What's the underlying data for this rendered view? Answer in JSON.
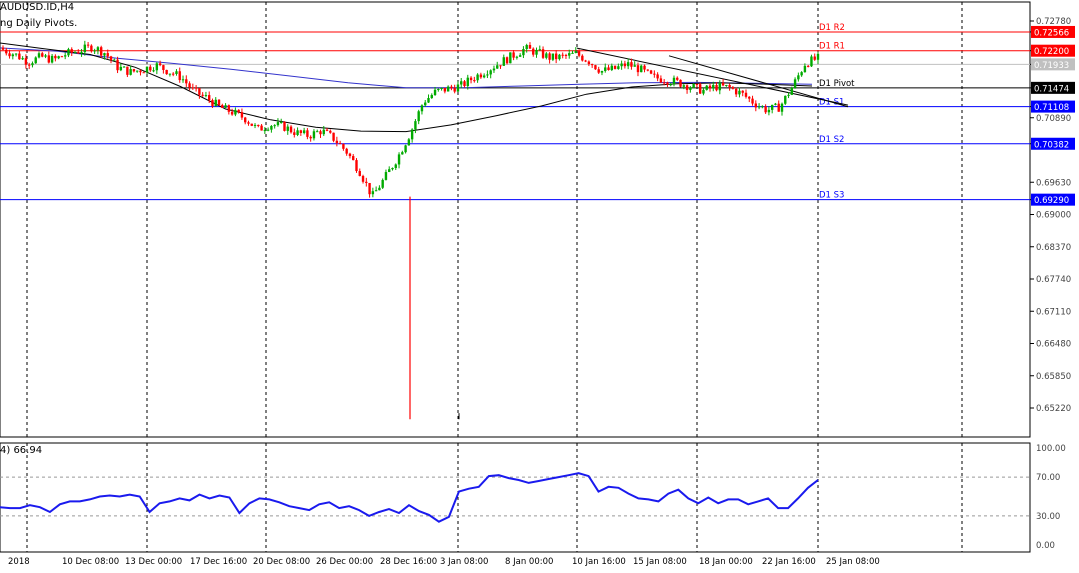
{
  "header": {
    "symbol_timeframe": "AUDUSD.ID,H4",
    "indicator_label": "ng Daily Pivots.",
    "osc_label": "4) 66.94"
  },
  "colors": {
    "resistance": "#ff0000",
    "support": "#0000ff",
    "pivot": "#000000",
    "bull": "#00aa00",
    "bear": "#ff0000",
    "ma_blue": "#3333cc",
    "osc_line": "#1a1aee"
  },
  "chart_data": [
    {
      "type": "candlestick",
      "title": "AUDUSD.ID,H4",
      "y_ticks": [
        "0.72780",
        "0.72566",
        "0.72200",
        "0.71933",
        "0.71474",
        "0.71108",
        "0.70890",
        "0.70382",
        "0.69630",
        "0.69290",
        "0.69000",
        "0.68370",
        "0.67740",
        "0.67110",
        "0.66480",
        "0.65850",
        "0.65220"
      ],
      "x_ticks": [
        "2018",
        "10 Dec 08:00",
        "13 Dec 00:00",
        "17 Dec 16:00",
        "20 Dec 08:00",
        "26 Dec 00:00",
        "28 Dec 16:00",
        "3 Jan 08:00",
        "8 Jan 00:00",
        "10 Jan 16:00",
        "15 Jan 08:00",
        "18 Jan 00:00",
        "22 Jan 16:00",
        "25 Jan 08:00"
      ],
      "ylim": [
        0.6493,
        0.731
      ],
      "grid": "vertical dashed",
      "pivot_levels": [
        {
          "name": "D1 R2",
          "value": 0.72566,
          "tag": "0.72566",
          "kind": "resistance"
        },
        {
          "name": "D1 R1",
          "value": 0.722,
          "tag": "0.72200",
          "kind": "resistance"
        },
        {
          "name": "D1 Pivot",
          "value": 0.71474,
          "tag": "0.71474",
          "kind": "pivot"
        },
        {
          "name": "D1 S1",
          "value": 0.71108,
          "tag": "0.71108",
          "kind": "support"
        },
        {
          "name": "D1 S2",
          "value": 0.70382,
          "tag": "0.70382",
          "kind": "support"
        },
        {
          "name": "D1 S3",
          "value": 0.6929,
          "tag": "0.69290",
          "kind": "support"
        }
      ],
      "current_price": 0.71933,
      "close_path": [
        0.7222,
        0.7212,
        0.7198,
        0.7208,
        0.7202,
        0.7214,
        0.722,
        0.7228,
        0.7216,
        0.7188,
        0.7178,
        0.7184,
        0.7192,
        0.718,
        0.7168,
        0.714,
        0.7128,
        0.711,
        0.71,
        0.7088,
        0.7066,
        0.7076,
        0.7072,
        0.706,
        0.7054,
        0.7064,
        0.7048,
        0.7022,
        0.6985,
        0.6935,
        0.6972,
        0.7012,
        0.706,
        0.712,
        0.714,
        0.7146,
        0.7152,
        0.7168,
        0.7182,
        0.7196,
        0.721,
        0.7224,
        0.7216,
        0.7206,
        0.7208,
        0.7214,
        0.72,
        0.718,
        0.7184,
        0.7194,
        0.7184,
        0.7168,
        0.7164,
        0.7158,
        0.715,
        0.7142,
        0.715,
        0.7148,
        0.7136,
        0.7118,
        0.7104,
        0.711,
        0.715,
        0.7196,
        0.7205
      ],
      "ma_black": [
        [
          0.724,
          0.723
        ],
        [
          0.7222,
          0.7225
        ],
        [
          0.721,
          0.7215
        ],
        [
          0.7185,
          0.719
        ],
        [
          0.714,
          0.716
        ],
        [
          0.71,
          0.7112
        ],
        [
          0.708,
          0.709
        ],
        [
          0.7066,
          0.7075
        ],
        [
          0.706,
          0.7066
        ],
        [
          0.7062,
          0.7062
        ],
        [
          0.708,
          0.707
        ],
        [
          0.7104,
          0.7082
        ],
        [
          0.7124,
          0.71
        ],
        [
          0.7142,
          0.7128
        ],
        [
          0.7153,
          0.7145
        ],
        [
          0.7158,
          0.7153
        ],
        [
          0.7156,
          0.7158
        ],
        [
          0.7154,
          0.7155
        ],
        [
          0.715,
          0.7152
        ]
      ],
      "ma_blue": [
        [
          0.7215,
          0.7236
        ],
        [
          0.721,
          0.7228
        ],
        [
          0.72,
          0.7211
        ],
        [
          0.719,
          0.72
        ],
        [
          0.7178,
          0.7189
        ],
        [
          0.7165,
          0.7176
        ],
        [
          0.7153,
          0.7162
        ],
        [
          0.7145,
          0.715
        ],
        [
          0.7148,
          0.7147
        ],
        [
          0.7152,
          0.715
        ],
        [
          0.7155,
          0.7154
        ],
        [
          0.7158,
          0.7157
        ],
        [
          0.7158,
          0.7158
        ],
        [
          0.7156,
          0.7157
        ],
        [
          0.7154,
          0.7155
        ]
      ],
      "trendlines": [
        [
          0.7225,
          0.718
        ],
        [
          0.718,
          0.7105
        ],
        [
          0.721,
          0.7175
        ],
        [
          0.7175,
          0.7115
        ]
      ],
      "spike_low": 0.65
    },
    {
      "type": "line",
      "title": "4) 66.94",
      "y_ticks": [
        "100.00",
        "70.00",
        "30.00",
        "0.00"
      ],
      "levels": [
        70,
        30
      ],
      "ylim": [
        0,
        100
      ],
      "current_value": 66.94,
      "values": [
        39,
        38,
        38,
        41,
        39,
        34,
        42,
        45,
        45,
        47,
        50,
        51,
        50,
        52,
        50,
        34,
        43,
        45,
        48,
        46,
        52,
        48,
        51,
        49,
        33,
        43,
        48,
        47,
        44,
        40,
        38,
        36,
        42,
        44,
        38,
        40,
        36,
        30,
        34,
        37,
        33,
        41,
        35,
        31,
        24,
        29,
        55,
        58,
        60,
        71,
        72,
        69,
        67,
        64,
        66,
        68,
        70,
        72,
        74,
        71,
        55,
        60,
        59,
        53,
        48,
        47,
        45,
        53,
        57,
        48,
        43,
        49,
        43,
        47,
        47,
        42,
        45,
        48,
        38,
        38,
        48,
        59,
        67
      ]
    }
  ]
}
